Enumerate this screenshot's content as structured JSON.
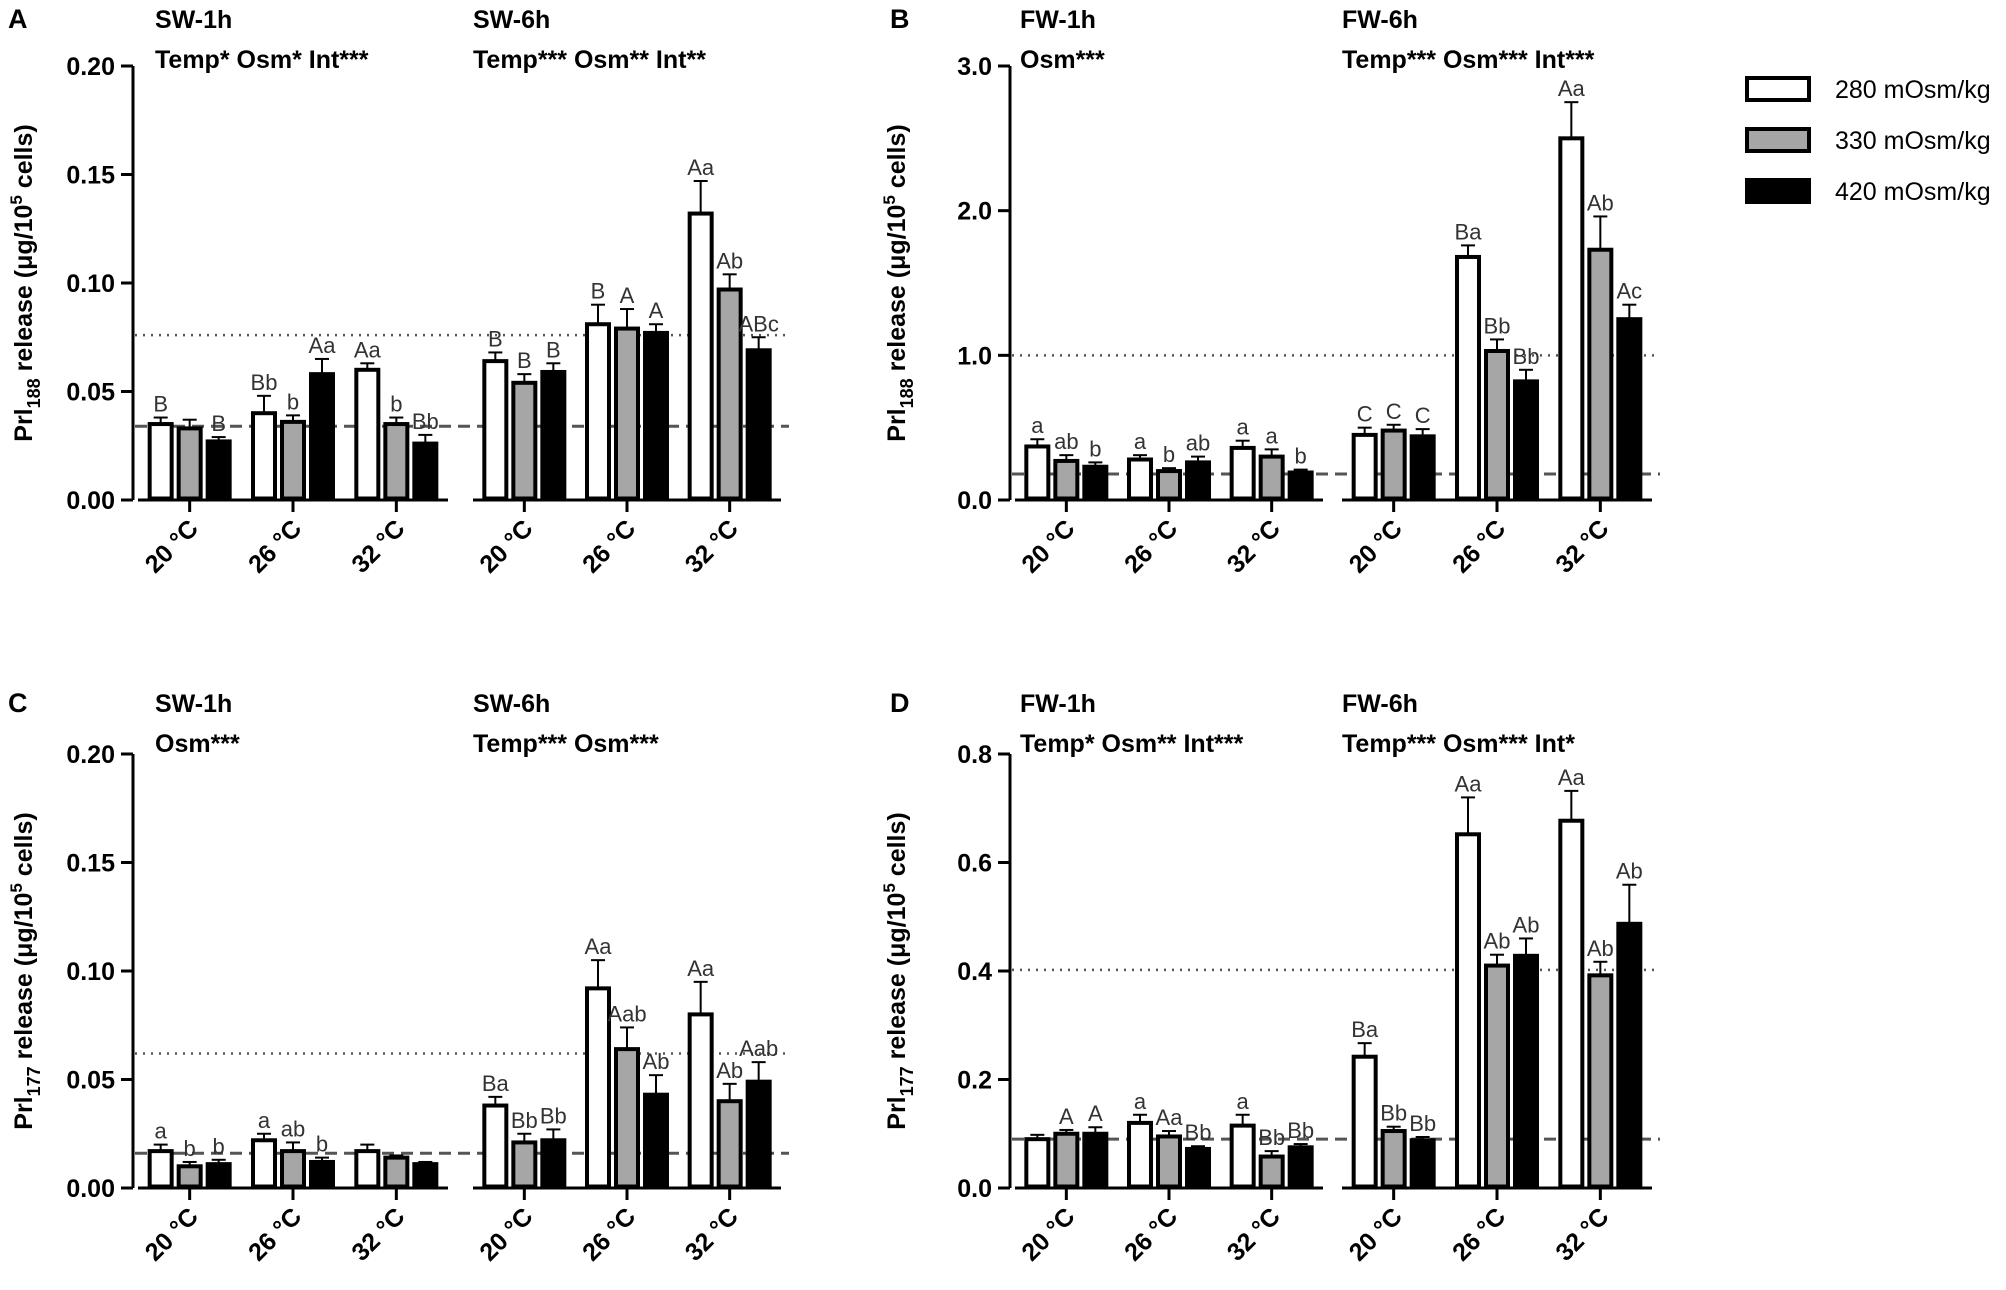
{
  "legend": {
    "entries": [
      {
        "label": "280 mOsm/kg",
        "fill": "#ffffff"
      },
      {
        "label": "330 mOsm/kg",
        "fill": "#a6a6a6"
      },
      {
        "label": "420 mOsm/kg",
        "fill": "#000000"
      }
    ]
  },
  "colors": {
    "axis": "#000000",
    "bar_stroke": "#000000",
    "reference_line": "#555555",
    "sig_text": "#333333"
  },
  "chart_data": [
    {
      "type": "bar",
      "panel": "A",
      "ylabel": {
        "prefix": "Prl",
        "subscript": "188",
        "middle": " release (μg/10",
        "superscript": "5",
        "suffix": " cells)"
      },
      "ylim": [
        0,
        0.2
      ],
      "yticks": [
        "0.00",
        "0.05",
        "0.10",
        "0.15",
        "0.20"
      ],
      "ytick_values": [
        0,
        0.05,
        0.1,
        0.15,
        0.2
      ],
      "reference_lines": [
        {
          "style": "dotted",
          "value": 0.076
        },
        {
          "style": "dashed",
          "value": 0.034
        }
      ],
      "series_names": [
        "280 mOsm/kg",
        "330 mOsm/kg",
        "420 mOsm/kg"
      ],
      "groups": [
        {
          "title": "SW-1h",
          "stats": "Temp* Osm* Int***",
          "categories": [
            "20 °C",
            "26 °C",
            "32 °C"
          ],
          "values": [
            [
              0.035,
              0.033,
              0.027
            ],
            [
              0.04,
              0.036,
              0.058
            ],
            [
              0.06,
              0.035,
              0.026
            ]
          ],
          "errors": [
            [
              0.003,
              0.004,
              0.002
            ],
            [
              0.008,
              0.003,
              0.007
            ],
            [
              0.003,
              0.003,
              0.004
            ]
          ],
          "labels": [
            [
              "B",
              "",
              "B"
            ],
            [
              "Bb",
              "b",
              "Aa"
            ],
            [
              "Aa",
              "b",
              "Bb"
            ]
          ]
        },
        {
          "title": "SW-6h",
          "stats": "Temp*** Osm** Int**",
          "categories": [
            "20 °C",
            "26 °C",
            "32 °C"
          ],
          "values": [
            [
              0.064,
              0.054,
              0.059
            ],
            [
              0.081,
              0.079,
              0.077
            ],
            [
              0.132,
              0.097,
              0.069
            ]
          ],
          "errors": [
            [
              0.004,
              0.004,
              0.004
            ],
            [
              0.009,
              0.009,
              0.004
            ],
            [
              0.015,
              0.007,
              0.006
            ]
          ],
          "labels": [
            [
              "B",
              "B",
              "B"
            ],
            [
              "B",
              "A",
              "A"
            ],
            [
              "Aa",
              "Ab",
              "ABc"
            ]
          ]
        }
      ]
    },
    {
      "type": "bar",
      "panel": "B",
      "ylabel": {
        "prefix": "Prl",
        "subscript": "188",
        "middle": " release (μg/10",
        "superscript": "5",
        "suffix": " cells)"
      },
      "ylim": [
        0,
        3
      ],
      "yticks": [
        "0.0",
        "1.0",
        "2.0",
        "3.0"
      ],
      "ytick_values": [
        0,
        1,
        2,
        3
      ],
      "reference_lines": [
        {
          "style": "dotted",
          "value": 1.0
        },
        {
          "style": "dashed",
          "value": 0.18
        }
      ],
      "series_names": [
        "280 mOsm/kg",
        "330 mOsm/kg",
        "420 mOsm/kg"
      ],
      "groups": [
        {
          "title": "FW-1h",
          "stats": "Osm***",
          "categories": [
            "20 °C",
            "26 °C",
            "32 °C"
          ],
          "values": [
            [
              0.37,
              0.27,
              0.23
            ],
            [
              0.28,
              0.2,
              0.26
            ],
            [
              0.36,
              0.3,
              0.19
            ]
          ],
          "errors": [
            [
              0.05,
              0.04,
              0.03
            ],
            [
              0.03,
              0.02,
              0.04
            ],
            [
              0.05,
              0.05,
              0.02
            ]
          ],
          "labels": [
            [
              "a",
              "ab",
              "b"
            ],
            [
              "a",
              "b",
              "ab"
            ],
            [
              "a",
              "a",
              "b"
            ]
          ]
        },
        {
          "title": "FW-6h",
          "stats": "Temp*** Osm*** Int***",
          "categories": [
            "20 °C",
            "26 °C",
            "32 °C"
          ],
          "values": [
            [
              0.45,
              0.48,
              0.44
            ],
            [
              1.68,
              1.03,
              0.82
            ],
            [
              2.5,
              1.73,
              1.25
            ]
          ],
          "errors": [
            [
              0.05,
              0.04,
              0.05
            ],
            [
              0.08,
              0.08,
              0.08
            ],
            [
              0.25,
              0.23,
              0.1
            ]
          ],
          "labels": [
            [
              "C",
              "C",
              "C"
            ],
            [
              "Ba",
              "Bb",
              "Bb"
            ],
            [
              "Aa",
              "Ab",
              "Ac"
            ]
          ]
        }
      ]
    },
    {
      "type": "bar",
      "panel": "C",
      "ylabel": {
        "prefix": "Prl",
        "subscript": "177",
        "middle": " release (μg/10",
        "superscript": "5",
        "suffix": " cells)"
      },
      "ylim": [
        0,
        0.2
      ],
      "yticks": [
        "0.00",
        "0.05",
        "0.10",
        "0.15",
        "0.20"
      ],
      "ytick_values": [
        0,
        0.05,
        0.1,
        0.15,
        0.2
      ],
      "reference_lines": [
        {
          "style": "dotted",
          "value": 0.062
        },
        {
          "style": "dashed",
          "value": 0.016
        }
      ],
      "series_names": [
        "280 mOsm/kg",
        "330 mOsm/kg",
        "420 mOsm/kg"
      ],
      "groups": [
        {
          "title": "SW-1h",
          "stats": "Osm***",
          "categories": [
            "20 °C",
            "26 °C",
            "32 °C"
          ],
          "values": [
            [
              0.017,
              0.01,
              0.011
            ],
            [
              0.022,
              0.017,
              0.012
            ],
            [
              0.017,
              0.014,
              0.011
            ]
          ],
          "errors": [
            [
              0.003,
              0.002,
              0.002
            ],
            [
              0.003,
              0.004,
              0.002
            ],
            [
              0.003,
              0.001,
              0.001
            ]
          ],
          "labels": [
            [
              "a",
              "b",
              "b"
            ],
            [
              "a",
              "ab",
              "b"
            ],
            [
              "",
              "",
              ""
            ]
          ]
        },
        {
          "title": "SW-6h",
          "stats": "Temp*** Osm***",
          "categories": [
            "20 °C",
            "26 °C",
            "32 °C"
          ],
          "values": [
            [
              0.038,
              0.021,
              0.022
            ],
            [
              0.092,
              0.064,
              0.043
            ],
            [
              0.08,
              0.04,
              0.049
            ]
          ],
          "errors": [
            [
              0.004,
              0.004,
              0.005
            ],
            [
              0.013,
              0.01,
              0.009
            ],
            [
              0.015,
              0.008,
              0.009
            ]
          ],
          "labels": [
            [
              "Ba",
              "Bb",
              "Bb"
            ],
            [
              "Aa",
              "Aab",
              "Ab"
            ],
            [
              "Aa",
              "Ab",
              "Aab"
            ]
          ]
        }
      ]
    },
    {
      "type": "bar",
      "panel": "D",
      "ylabel": {
        "prefix": "Prl",
        "subscript": "177",
        "middle": " release (μg/10",
        "superscript": "5",
        "suffix": " cells)"
      },
      "ylim": [
        0,
        0.8
      ],
      "yticks": [
        "0.0",
        "0.2",
        "0.4",
        "0.6",
        "0.8"
      ],
      "ytick_values": [
        0,
        0.2,
        0.4,
        0.6,
        0.8
      ],
      "reference_lines": [
        {
          "style": "dotted",
          "value": 0.402
        },
        {
          "style": "dashed",
          "value": 0.09
        }
      ],
      "series_names": [
        "280 mOsm/kg",
        "330 mOsm/kg",
        "420 mOsm/kg"
      ],
      "groups": [
        {
          "title": "FW-1h",
          "stats": "Temp* Osm** Int***",
          "categories": [
            "20 °C",
            "26 °C",
            "32 °C"
          ],
          "values": [
            [
              0.09,
              0.1,
              0.1
            ],
            [
              0.12,
              0.095,
              0.072
            ],
            [
              0.115,
              0.058,
              0.075
            ]
          ],
          "errors": [
            [
              0.008,
              0.007,
              0.012
            ],
            [
              0.015,
              0.01,
              0.005
            ],
            [
              0.02,
              0.01,
              0.006
            ]
          ],
          "labels": [
            [
              "",
              "A",
              "A"
            ],
            [
              "a",
              "Aa",
              "Bb"
            ],
            [
              "a",
              "Bb",
              "Bb"
            ]
          ]
        },
        {
          "title": "FW-6h",
          "stats": "Temp*** Osm*** Int*",
          "categories": [
            "20 °C",
            "26 °C",
            "32 °C"
          ],
          "values": [
            [
              0.242,
              0.105,
              0.088
            ],
            [
              0.652,
              0.41,
              0.428
            ],
            [
              0.677,
              0.392,
              0.487
            ]
          ],
          "errors": [
            [
              0.025,
              0.008,
              0.006
            ],
            [
              0.068,
              0.02,
              0.032
            ],
            [
              0.055,
              0.025,
              0.072
            ]
          ],
          "labels": [
            [
              "Ba",
              "Bb",
              "Bb"
            ],
            [
              "Aa",
              "Ab",
              "Ab"
            ],
            [
              "Aa",
              "Ab",
              "Ab"
            ]
          ]
        }
      ]
    }
  ]
}
